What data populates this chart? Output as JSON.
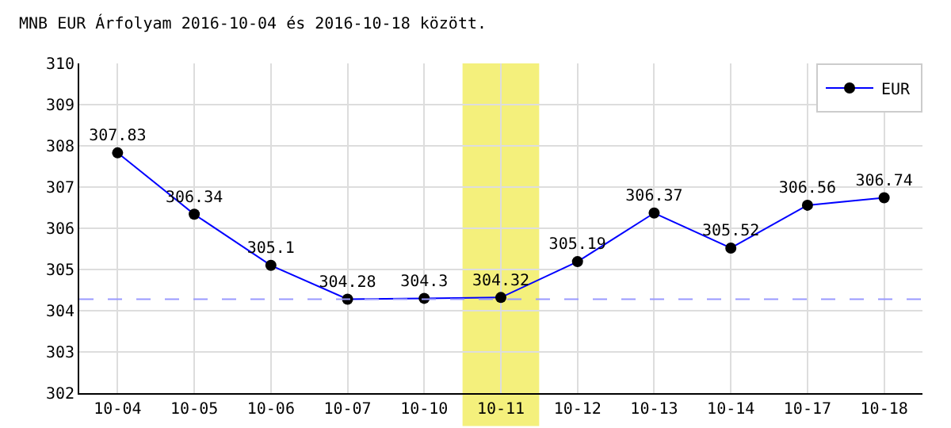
{
  "chart_data": {
    "type": "line",
    "title": "MNB EUR Árfolyam 2016-10-04 és 2016-10-18 között.",
    "categories": [
      "10-04",
      "10-05",
      "10-06",
      "10-07",
      "10-10",
      "10-11",
      "10-12",
      "10-13",
      "10-14",
      "10-17",
      "10-18"
    ],
    "series": [
      {
        "name": "EUR",
        "color": "#0000ff",
        "values": [
          307.83,
          306.34,
          305.1,
          304.28,
          304.3,
          304.32,
          305.19,
          306.37,
          305.52,
          306.56,
          306.74
        ]
      }
    ],
    "ylim": [
      302,
      310
    ],
    "yticks": [
      302,
      303,
      304,
      305,
      306,
      307,
      308,
      309,
      310
    ],
    "ref_lines": [
      {
        "axis": "y",
        "value": 304.28,
        "color": "#9999ff",
        "line_style": "dashed"
      }
    ],
    "bands": [
      {
        "axis": "x",
        "from": "10-11",
        "to": "10-11",
        "color": "#f4f07c"
      }
    ],
    "data_labels": true,
    "grid": true,
    "legend": "top right",
    "marker": "circle",
    "line_style": "solid"
  }
}
